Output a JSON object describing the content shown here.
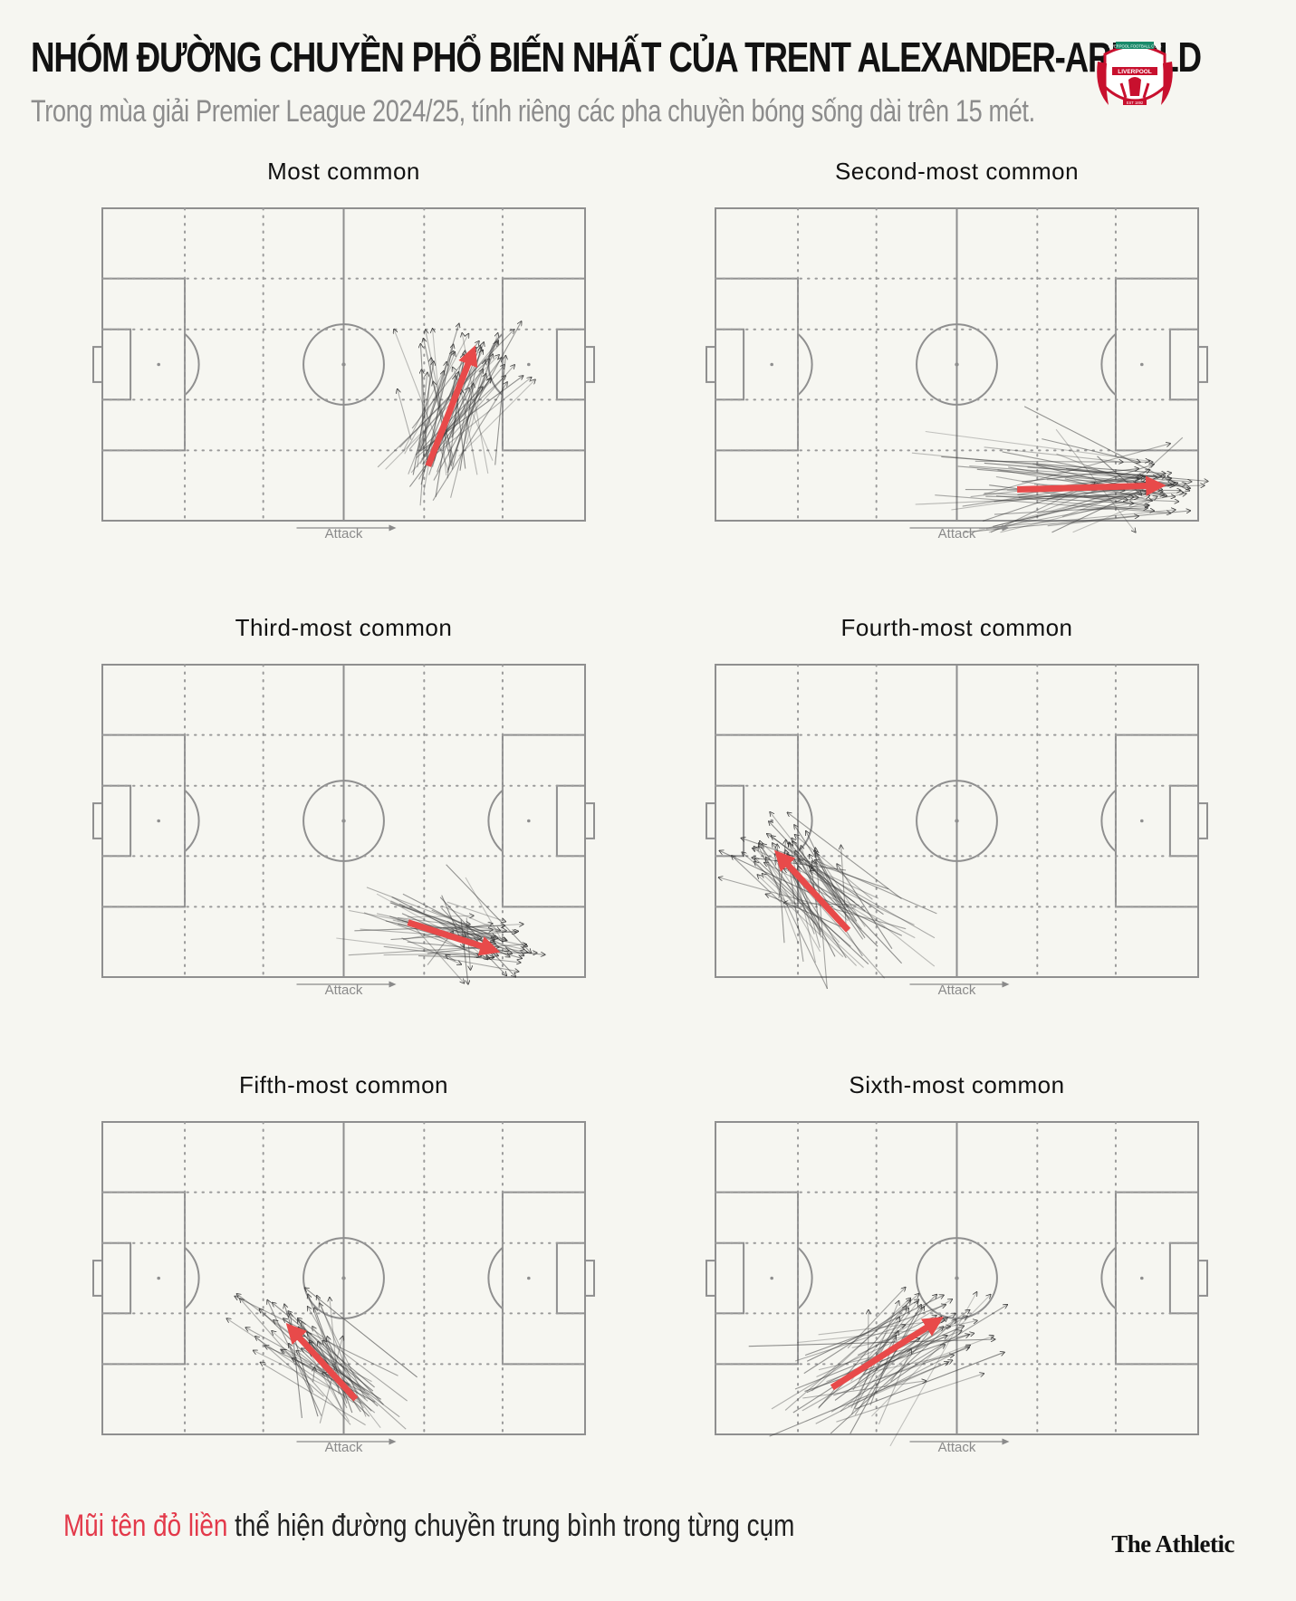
{
  "header": {
    "title": "NHÓM ĐƯỜNG CHUYỀN PHỔ BIẾN NHẤT CỦA TRENT ALEXANDER-ARNOLD",
    "subtitle": "Trong mùa giải Premier League 2024/25, tính riêng các pha chuyền bóng sống dài trên 15 mét."
  },
  "crest": {
    "name": "liverpool-crest-icon",
    "text": "LIVERPOOL FOOTBALL CLUB",
    "est": "EST 1892",
    "color": "#c8102e"
  },
  "attack_label": "Attack",
  "colors": {
    "background": "#f6f6f1",
    "line": "#8f8f8f",
    "pass": "#3a3a3a",
    "mean_arrow": "#e84a4a",
    "legend_red": "#e3394a"
  },
  "chart_data": [
    {
      "type": "pass-cluster",
      "title": "Most common",
      "pitch": {
        "length": 120,
        "width": 80,
        "attack_direction": "right"
      },
      "mean_pass": {
        "start": [
          81,
          14
        ],
        "end": [
          92,
          43
        ]
      },
      "spread": {
        "start": 7,
        "end": 9
      },
      "count": 60
    },
    {
      "type": "pass-cluster",
      "title": "Second-most common",
      "pitch": {
        "length": 120,
        "width": 80,
        "attack_direction": "right"
      },
      "mean_pass": {
        "start": [
          75,
          8
        ],
        "end": [
          110,
          9
        ]
      },
      "spread": {
        "start": 12,
        "end": 6
      },
      "count": 65
    },
    {
      "type": "pass-cluster",
      "title": "Third-most common",
      "pitch": {
        "length": 120,
        "width": 80,
        "attack_direction": "right"
      },
      "mean_pass": {
        "start": [
          76,
          14
        ],
        "end": [
          97,
          7
        ]
      },
      "spread": {
        "start": 9,
        "end": 7
      },
      "count": 55
    },
    {
      "type": "pass-cluster",
      "title": "Fourth-most common",
      "pitch": {
        "length": 120,
        "width": 80,
        "attack_direction": "right"
      },
      "mean_pass": {
        "start": [
          33,
          12
        ],
        "end": [
          16,
          31
        ]
      },
      "spread": {
        "start": 10,
        "end": 7
      },
      "count": 60
    },
    {
      "type": "pass-cluster",
      "title": "Fifth-most common",
      "pitch": {
        "length": 120,
        "width": 80,
        "attack_direction": "right"
      },
      "mean_pass": {
        "start": [
          63,
          9
        ],
        "end": [
          47,
          27
        ]
      },
      "spread": {
        "start": 7,
        "end": 9
      },
      "count": 50
    },
    {
      "type": "pass-cluster",
      "title": "Sixth-most common",
      "pitch": {
        "length": 120,
        "width": 80,
        "attack_direction": "right"
      },
      "mean_pass": {
        "start": [
          29,
          12
        ],
        "end": [
          55,
          29
        ]
      },
      "spread": {
        "start": 12,
        "end": 9
      },
      "count": 55
    }
  ],
  "legend": {
    "red_text": "Mũi tên đỏ liền",
    "rest_text": " thể hiện đường chuyền trung bình trong từng cụm"
  },
  "brand": "The Athletic"
}
